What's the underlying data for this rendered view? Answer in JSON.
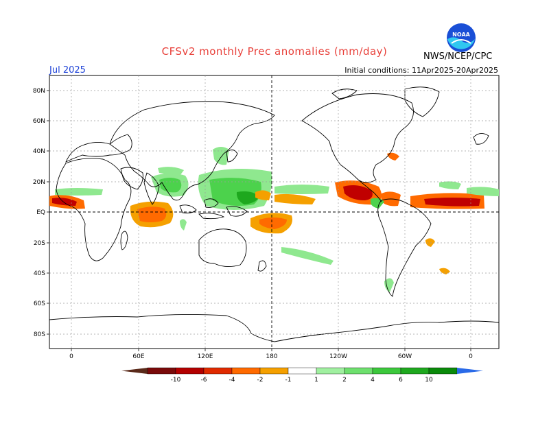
{
  "header": {
    "title": "CFSv2 monthly Prec anomalies (mm/day)",
    "month": "Jul 2025",
    "agency": "NWS/NCEP/CPC",
    "initial_conditions": "Initial conditions: 11Apr2025-20Apr2025",
    "logo_text": "NOAA"
  },
  "axes": {
    "lat_labels": [
      "80N",
      "60N",
      "40N",
      "20N",
      "EQ",
      "20S",
      "40S",
      "60S",
      "80S"
    ],
    "lon_labels": [
      "0",
      "60E",
      "120E",
      "180",
      "120W",
      "60W",
      "0"
    ]
  },
  "colorbar": {
    "labels": [
      "-10",
      "-6",
      "-4",
      "-2",
      "-1",
      "1",
      "2",
      "4",
      "6",
      "10"
    ],
    "colors": [
      "#5a2a1a",
      "#7a0a0a",
      "#b30000",
      "#e02a00",
      "#ff6a00",
      "#f5a000",
      "#ffffff",
      "#a0f0a0",
      "#6ee06e",
      "#3cc83c",
      "#1ea81e",
      "#0a8a0a",
      "#2a6ae8"
    ]
  },
  "colors": {
    "positive_light": "#8fe88f",
    "positive_mid": "#4cd24c",
    "positive_dark": "#1ea81e",
    "negative_light": "#f5a000",
    "negative_mid": "#ff6a00",
    "negative_dark": "#c00000",
    "title": "#e8403a",
    "month": "#1a3fd6"
  }
}
